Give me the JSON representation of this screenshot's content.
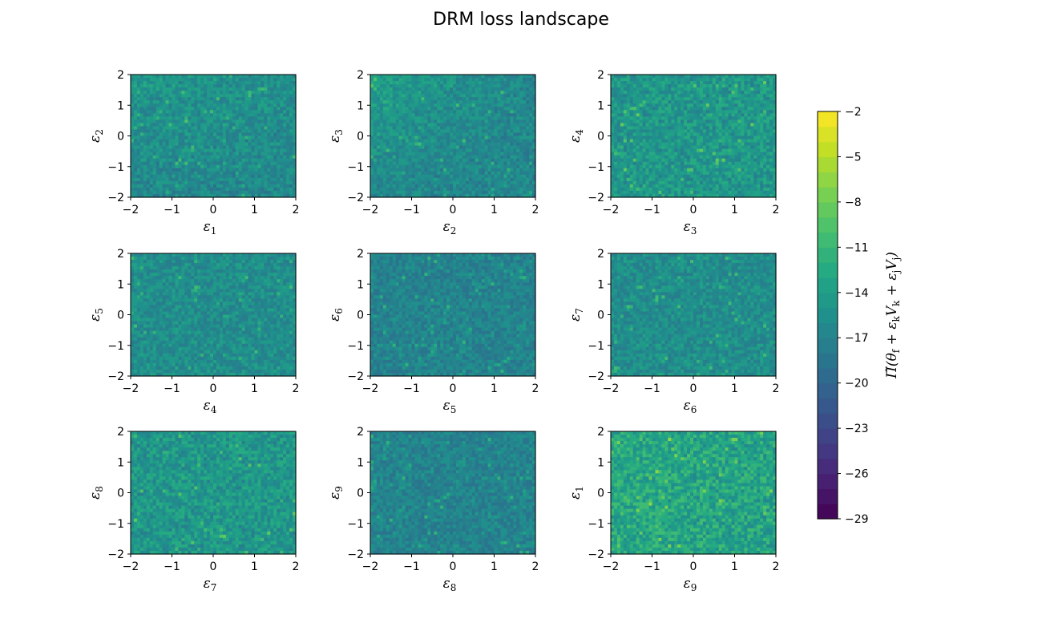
{
  "figure": {
    "title": "DRM loss landscape",
    "colormap": "viridis"
  },
  "chart_data": {
    "type": "heatmap",
    "title": "DRM loss landscape",
    "grid": false,
    "xlim": [
      -2,
      2
    ],
    "ylim": [
      -2,
      2
    ],
    "ticks": [
      "−2",
      "−1",
      "0",
      "1",
      "2"
    ],
    "subplots": [
      {
        "xlabel": "ε",
        "xsub": "1",
        "ylabel": "ε",
        "ysub": "2",
        "style": "lower-left-bright"
      },
      {
        "xlabel": "ε",
        "xsub": "2",
        "ylabel": "ε",
        "ysub": "3",
        "style": "left-bright"
      },
      {
        "xlabel": "ε",
        "xsub": "3",
        "ylabel": "ε",
        "ysub": "4",
        "style": "bright"
      },
      {
        "xlabel": "ε",
        "xsub": "4",
        "ylabel": "ε",
        "ysub": "5",
        "style": "uniform"
      },
      {
        "xlabel": "ε",
        "xsub": "5",
        "ylabel": "ε",
        "ysub": "6",
        "style": "dark"
      },
      {
        "xlabel": "ε",
        "xsub": "6",
        "ylabel": "ε",
        "ysub": "7",
        "style": "uniform"
      },
      {
        "xlabel": "ε",
        "xsub": "7",
        "ylabel": "ε",
        "ysub": "8",
        "style": "bright"
      },
      {
        "xlabel": "ε",
        "xsub": "8",
        "ylabel": "ε",
        "ysub": "9",
        "style": "dark"
      },
      {
        "xlabel": "ε",
        "xsub": "9",
        "ylabel": "ε",
        "ysub": "1",
        "style": "very-bright"
      }
    ],
    "colorbar": {
      "label": "Π̃(θ_f + ε_k V_k + ε_j V_j)",
      "label_parts": {
        "pi": "Π̃",
        "theta": "θ",
        "f": "f",
        "plus": "+",
        "eps": "ε",
        "k": "k",
        "j": "j",
        "V": "V"
      },
      "min": -29,
      "max": -2,
      "levels": 27,
      "tick_values": [
        -2,
        -5,
        -8,
        -11,
        -14,
        -17,
        -20,
        -23,
        -26,
        -29
      ],
      "tick_labels": [
        "−2",
        "−5",
        "−8",
        "−11",
        "−14",
        "−17",
        "−20",
        "−23",
        "−26",
        "−29"
      ]
    }
  }
}
